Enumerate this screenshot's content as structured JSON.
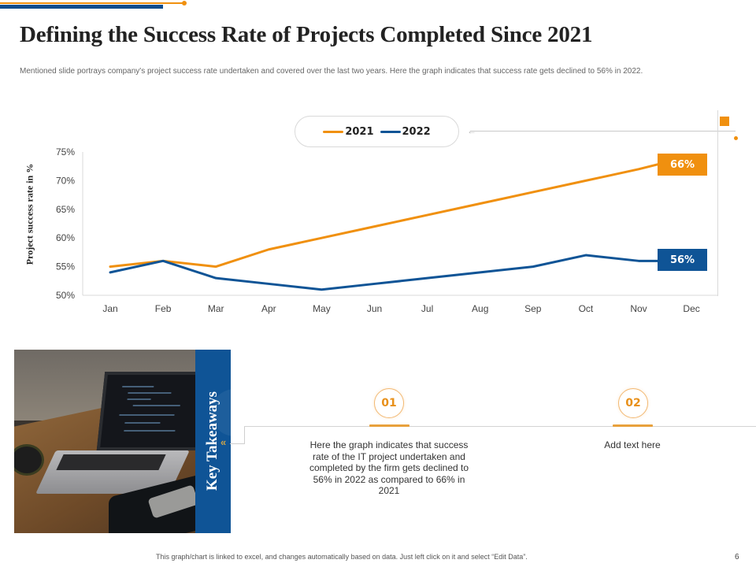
{
  "slide": {
    "title": "Defining the Success Rate of Projects Completed Since 2021",
    "subtitle": "Mentioned slide portrays company's project success rate undertaken and covered over the last two years. Here the graph indicates that success rate gets declined to 56% in 2022.",
    "footer_note": "This graph/chart is linked to excel, and changes automatically based on data. Just left click on it and select “Edit Data”.",
    "page_number": "6"
  },
  "colors": {
    "orange": "#f0900f",
    "blue": "#0f5496",
    "dark_blue": "#0f4c8c"
  },
  "chart_data": {
    "type": "line",
    "title": "",
    "xlabel": "",
    "ylabel": "Project success rate in %",
    "categories": [
      "Jan",
      "Feb",
      "Mar",
      "Apr",
      "May",
      "Jun",
      "Jul",
      "Aug",
      "Sep",
      "Oct",
      "Nov",
      "Dec"
    ],
    "series": [
      {
        "name": "2021",
        "color": "#f0900f",
        "values": [
          55,
          56,
          55,
          58,
          60,
          62,
          64,
          66,
          68,
          70,
          72,
          73
        ]
      },
      {
        "name": "2022",
        "color": "#0f5496",
        "values": [
          54,
          56,
          53,
          52,
          51,
          52,
          53,
          54,
          55,
          57,
          56,
          56
        ]
      }
    ],
    "ylim": [
      50,
      75
    ],
    "yticks": [
      50,
      55,
      60,
      65,
      70,
      75
    ],
    "ytick_labels": [
      "50%",
      "55%",
      "60%",
      "65%",
      "70%",
      "75%"
    ],
    "grid": false,
    "legend": {
      "position": "top-center",
      "entries": [
        "2021",
        "2022"
      ]
    },
    "annotations": [
      {
        "series": "2021",
        "text": "66%"
      },
      {
        "series": "2022",
        "text": "56%"
      }
    ]
  },
  "takeaways": {
    "label": "Key Takeaways",
    "chevron": "«",
    "items": [
      {
        "number": "01",
        "text": "Here the graph indicates that success rate of the IT project undertaken and completed by the firm gets declined to 56% in 2022 as compared to 66% in 2021"
      },
      {
        "number": "02",
        "text": "Add text here"
      }
    ]
  },
  "photo": {
    "description": "laptop-on-desk"
  }
}
